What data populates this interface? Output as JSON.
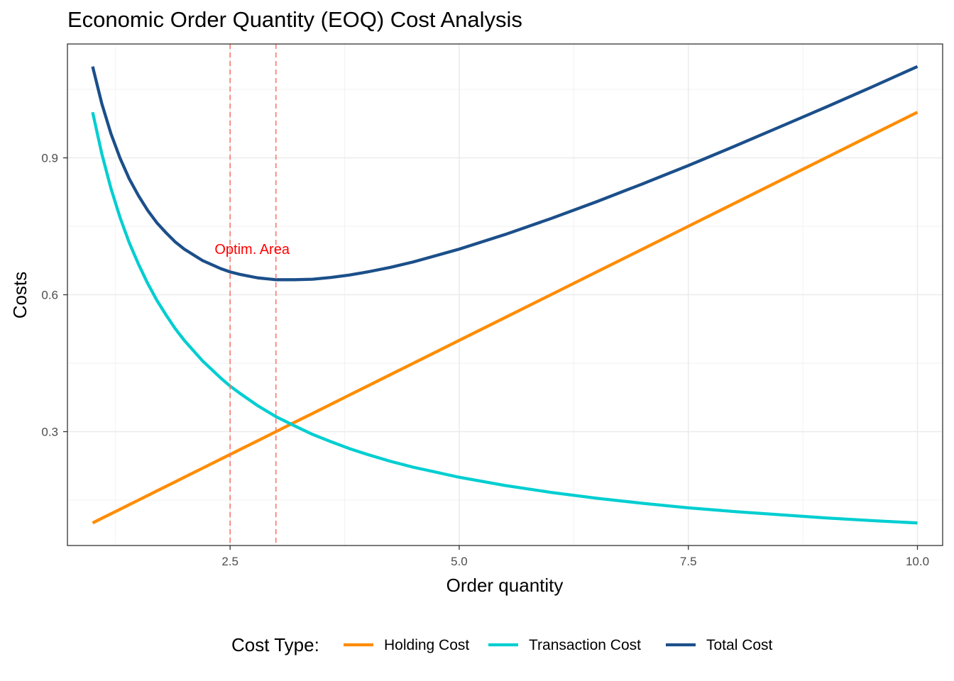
{
  "chart_data": {
    "type": "line",
    "title": "Economic Order Quantity (EOQ) Cost Analysis",
    "xlabel": "Order quantity",
    "ylabel": "Costs",
    "xlim": [
      0.725,
      10.275
    ],
    "ylim": [
      0.0505,
      1.1495
    ],
    "x_ticks": [
      2.5,
      5.0,
      7.5,
      10.0
    ],
    "x_tick_labels": [
      "2.5",
      "5.0",
      "7.5",
      "10.0"
    ],
    "y_ticks": [
      0.3,
      0.6,
      0.9
    ],
    "y_tick_labels": [
      "0.3",
      "0.6",
      "0.9"
    ],
    "grid": true,
    "legend": {
      "title": "Cost Type:",
      "placement": "bottom",
      "entries": [
        "Holding Cost",
        "Transaction Cost",
        "Total Cost"
      ]
    },
    "x": [
      1.0,
      1.1,
      1.2,
      1.3,
      1.4,
      1.5,
      1.6,
      1.7,
      1.8,
      1.9,
      2.0,
      2.2,
      2.4,
      2.5,
      2.6,
      2.8,
      3.0,
      3.2,
      3.4,
      3.6,
      3.8,
      4.0,
      4.25,
      4.5,
      4.75,
      5.0,
      5.5,
      6.0,
      6.5,
      7.0,
      7.5,
      8.0,
      8.5,
      9.0,
      9.5,
      10.0
    ],
    "series": [
      {
        "name": "Holding Cost",
        "color": "#FF8C00",
        "values": [
          0.1,
          0.11,
          0.12,
          0.13,
          0.14,
          0.15,
          0.16,
          0.17,
          0.18,
          0.19,
          0.2,
          0.22,
          0.24,
          0.25,
          0.26,
          0.28,
          0.3,
          0.32,
          0.34,
          0.36,
          0.38,
          0.4,
          0.425,
          0.45,
          0.475,
          0.5,
          0.55,
          0.6,
          0.65,
          0.7,
          0.75,
          0.8,
          0.85,
          0.9,
          0.95,
          1.0
        ]
      },
      {
        "name": "Transaction Cost",
        "color": "#00CED1",
        "values": [
          1.0,
          0.909,
          0.833,
          0.769,
          0.714,
          0.667,
          0.625,
          0.588,
          0.556,
          0.526,
          0.5,
          0.455,
          0.417,
          0.4,
          0.385,
          0.357,
          0.333,
          0.313,
          0.294,
          0.278,
          0.263,
          0.25,
          0.235,
          0.222,
          0.211,
          0.2,
          0.182,
          0.167,
          0.154,
          0.143,
          0.133,
          0.125,
          0.118,
          0.111,
          0.105,
          0.1
        ]
      },
      {
        "name": "Total Cost",
        "color": "#1B4F8A",
        "values": [
          1.1,
          1.019,
          0.953,
          0.899,
          0.854,
          0.817,
          0.785,
          0.758,
          0.736,
          0.716,
          0.7,
          0.675,
          0.657,
          0.65,
          0.645,
          0.637,
          0.633,
          0.633,
          0.634,
          0.638,
          0.643,
          0.65,
          0.66,
          0.672,
          0.686,
          0.7,
          0.732,
          0.767,
          0.804,
          0.843,
          0.883,
          0.925,
          0.968,
          1.011,
          1.055,
          1.1
        ]
      }
    ],
    "reference_lines": [
      {
        "axis": "x",
        "value": 2.5,
        "color": "#F8766D",
        "style": "dashed"
      },
      {
        "axis": "x",
        "value": 3.0,
        "color": "#F8766D",
        "style": "dashed"
      }
    ],
    "annotations": [
      {
        "text": "Optim. Area",
        "x": 2.5,
        "y": 0.7,
        "color": "#FF0000"
      }
    ]
  }
}
